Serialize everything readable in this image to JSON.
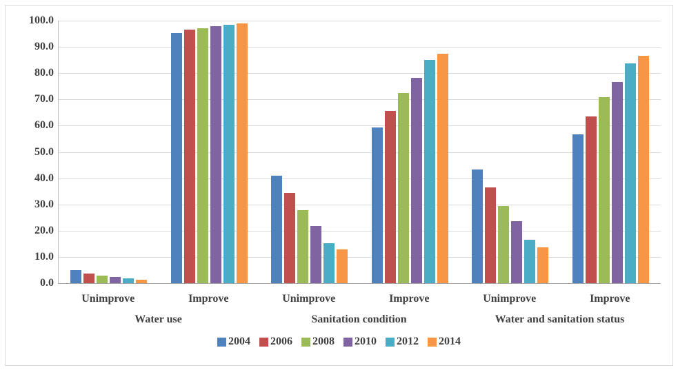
{
  "chart_data": {
    "type": "bar",
    "title": "",
    "xlabel": "",
    "ylabel": "",
    "ylim": [
      0,
      100
    ],
    "ytick_step": 10,
    "ytick_labels": [
      "100.0",
      "90.0",
      "80.0",
      "70.0",
      "60.0",
      "50.0",
      "40.0",
      "30.0",
      "20.0",
      "10.0",
      "0.0"
    ],
    "grid": true,
    "legend_position": "bottom",
    "groups": [
      {
        "label": "Water use",
        "categories": [
          "Unimprove",
          "Improve"
        ]
      },
      {
        "label": "Sanitation condition",
        "categories": [
          "Unimprove",
          "Improve"
        ]
      },
      {
        "label": "Water and sanitation status",
        "categories": [
          "Unimprove",
          "Improve"
        ]
      }
    ],
    "slot_order": [
      "Water use / Unimprove",
      "Water use / Improve",
      "Sanitation condition / Unimprove",
      "Sanitation condition / Improve",
      "Water and sanitation status / Unimprove",
      "Water and sanitation status / Improve"
    ],
    "series": [
      {
        "name": "2004",
        "color": "#4F81BD",
        "values": [
          4.9,
          95.4,
          40.9,
          59.2,
          43.3,
          56.8
        ]
      },
      {
        "name": "2006",
        "color": "#C0504D",
        "values": [
          3.6,
          96.6,
          34.5,
          65.7,
          36.5,
          63.5
        ]
      },
      {
        "name": "2008",
        "color": "#9BBB59",
        "values": [
          3.0,
          97.2,
          27.8,
          72.5,
          29.5,
          70.8
        ]
      },
      {
        "name": "2010",
        "color": "#8064A2",
        "values": [
          2.4,
          97.8,
          21.9,
          78.2,
          23.5,
          76.6
        ]
      },
      {
        "name": "2012",
        "color": "#4BACC6",
        "values": [
          1.9,
          98.3,
          15.1,
          85.1,
          16.5,
          83.6
        ]
      },
      {
        "name": "2014",
        "color": "#F79646",
        "values": [
          1.2,
          99.0,
          12.8,
          87.5,
          13.6,
          86.6
        ]
      }
    ]
  },
  "style": {
    "background": "#ffffff",
    "text_color": "#404040",
    "gridline_color": "#d9d9d9",
    "axis_color": "#bfbfbf",
    "frame_border_color": "#d9d9d9"
  }
}
